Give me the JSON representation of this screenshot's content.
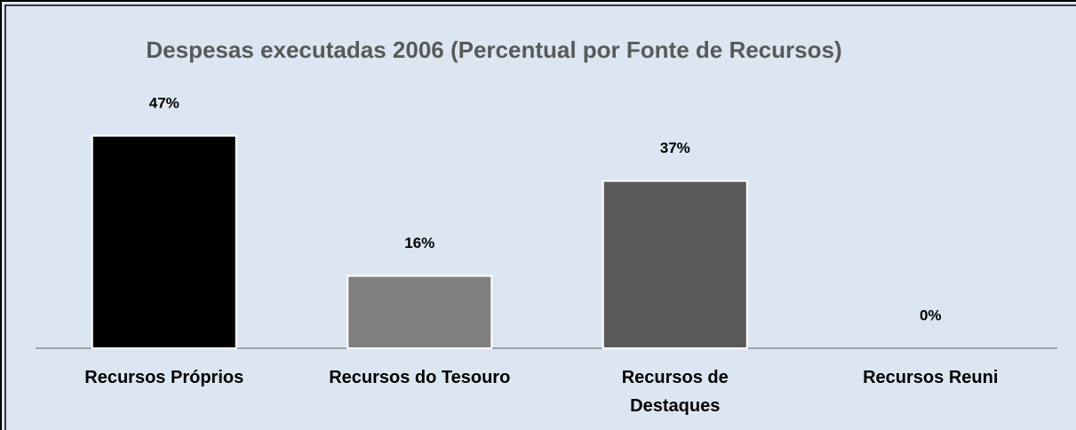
{
  "chart_data": {
    "type": "bar",
    "title": "Despesas executadas 2006 (Percentual por Fonte de Recursos)",
    "categories": [
      "Recursos Próprios",
      "Recursos do Tesouro",
      "Recursos de Destaques",
      "Recursos Reuni"
    ],
    "values": [
      47,
      16,
      37,
      0
    ],
    "value_labels": [
      "47%",
      "16%",
      "37%",
      "0%"
    ],
    "colors": [
      "#000000",
      "#808080",
      "#595959",
      "#404040"
    ]
  }
}
